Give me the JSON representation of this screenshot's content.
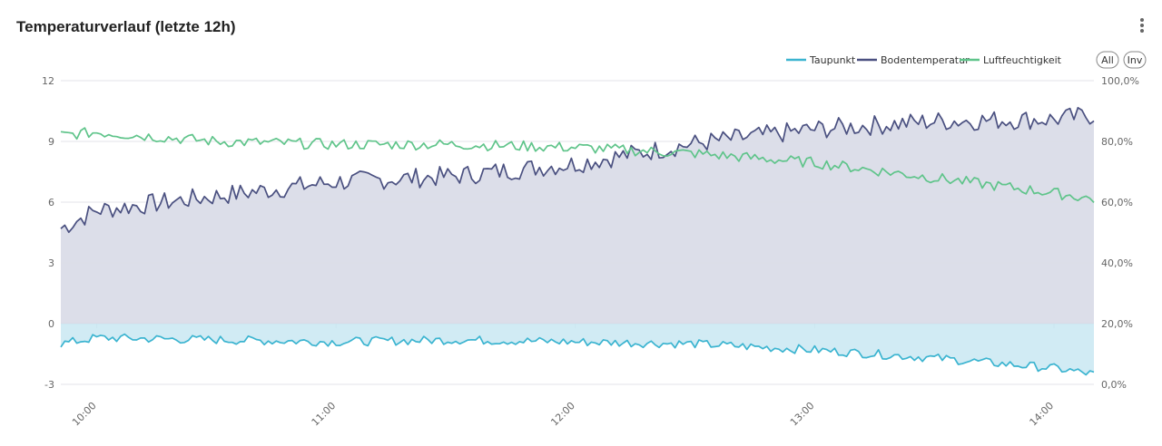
{
  "header": {
    "title": "Temperaturverlauf (letzte 12h)",
    "menu_icon": "more-vertical-icon"
  },
  "legend": {
    "items": [
      {
        "label": "Taupunkt",
        "color": "#3bb4d0"
      },
      {
        "label": "Bodentemperatur",
        "color": "#4a5080"
      },
      {
        "label": "Luftfeuchtigkeit",
        "color": "#5fc48a"
      }
    ],
    "all_label": "All",
    "inv_label": "Inv"
  },
  "chart_data": {
    "type": "line",
    "x_axis": {
      "type": "time",
      "ticks": [
        "10:00",
        "11:00",
        "12:00",
        "13:00",
        "14:00"
      ],
      "range": [
        "09:51",
        "14:10"
      ]
    },
    "y_left": {
      "min": -3,
      "max": 12,
      "ticks": [
        "12",
        "9",
        "6",
        "3",
        "0",
        "-3"
      ]
    },
    "y_right": {
      "min": 0,
      "max": 100,
      "ticks": [
        "100,0%",
        "80,0%",
        "60,0%",
        "40,0%",
        "20,0%",
        "0,0%"
      ]
    },
    "grid": true,
    "legend_position": "top-right",
    "series": [
      {
        "name": "Taupunkt",
        "axis": "left",
        "area": true,
        "x": [
          "09:51",
          "10:00",
          "10:30",
          "11:00",
          "11:30",
          "12:00",
          "12:30",
          "13:00",
          "13:30",
          "14:00",
          "14:10"
        ],
        "values": [
          -1.0,
          -0.7,
          -0.8,
          -0.9,
          -0.8,
          -0.9,
          -1.0,
          -1.3,
          -1.7,
          -2.2,
          -2.5
        ]
      },
      {
        "name": "Bodentemperatur",
        "axis": "left",
        "area": true,
        "x": [
          "09:51",
          "10:00",
          "10:30",
          "11:00",
          "11:30",
          "12:00",
          "12:30",
          "13:00",
          "13:30",
          "14:00",
          "14:10"
        ],
        "values": [
          4.7,
          5.6,
          6.3,
          7.0,
          7.3,
          7.9,
          8.9,
          9.6,
          10.0,
          10.1,
          10.3
        ]
      },
      {
        "name": "Luftfeuchtigkeit",
        "axis": "right",
        "area": false,
        "x": [
          "09:51",
          "10:00",
          "10:30",
          "11:00",
          "11:30",
          "12:00",
          "12:30",
          "13:00",
          "13:30",
          "14:00",
          "14:10"
        ],
        "values": [
          82,
          83,
          80,
          79,
          79,
          78,
          76,
          73,
          68,
          63,
          61
        ]
      }
    ]
  }
}
